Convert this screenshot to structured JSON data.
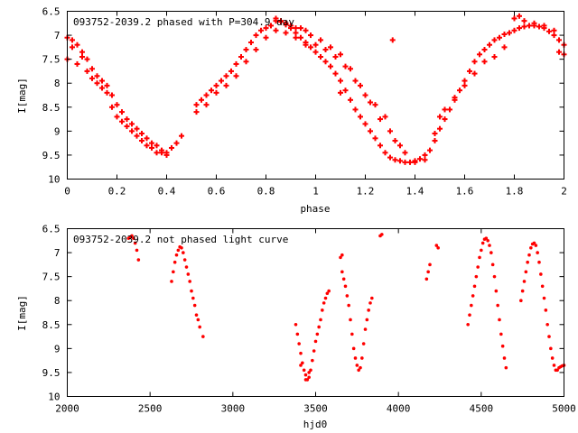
{
  "chart_data": [
    {
      "type": "scatter",
      "title": "093752-2039.2 phased with P=304.9 day",
      "xlabel": "phase",
      "ylabel": "I[mag]",
      "xlim": [
        0,
        2
      ],
      "ylim": [
        10,
        6.5
      ],
      "y_inverted": true,
      "xticks": [
        0,
        0.2,
        0.4,
        0.6,
        0.8,
        1,
        1.2,
        1.4,
        1.6,
        1.8,
        2
      ],
      "xtick_labels": [
        "0",
        "0.2",
        "0.4",
        "0.6",
        "0.8",
        "1",
        "1.2",
        "1.4",
        "1.6",
        "1.8",
        "2"
      ],
      "yticks": [
        6.5,
        7,
        7.5,
        8,
        8.5,
        9,
        9.5,
        10
      ],
      "ytick_labels": [
        "6.5",
        "7",
        "7.5",
        "8",
        "8.5",
        "9",
        "9.5",
        "10"
      ],
      "marker": "cross",
      "color": "#ff0000",
      "series": [
        {
          "x": [
            0.0,
            0.02,
            0.04,
            0.06,
            0.08,
            0.1,
            0.12,
            0.14,
            0.16,
            0.18,
            0.2,
            0.22,
            0.24,
            0.26,
            0.28,
            0.3,
            0.32,
            0.34,
            0.36,
            0.38,
            0.4,
            0.42,
            0.44,
            0.46,
            0.52,
            0.54,
            0.56,
            0.58,
            0.6,
            0.62,
            0.64,
            0.66,
            0.68,
            0.7,
            0.72,
            0.74,
            0.76,
            0.78,
            0.8,
            0.82,
            0.84,
            0.86,
            0.88,
            0.9,
            0.92,
            0.94,
            0.96,
            0.98,
            1.0,
            1.02,
            1.04,
            1.06,
            1.08,
            1.1,
            1.12,
            1.14,
            1.16,
            1.18,
            1.2,
            1.22,
            1.24,
            1.26,
            1.28,
            1.3,
            1.32,
            1.34,
            1.36,
            1.38,
            1.4,
            1.42,
            1.44,
            1.46,
            1.48,
            1.5,
            1.52,
            1.54,
            1.56,
            1.58,
            1.6,
            1.62,
            1.64,
            1.66,
            1.68,
            1.7,
            1.72,
            1.74,
            1.76,
            1.78,
            1.8,
            1.82,
            1.84,
            1.86,
            1.88,
            1.9,
            1.92,
            1.94,
            1.96,
            1.98,
            2.0
          ],
          "y": [
            7.05,
            7.1,
            7.2,
            7.35,
            7.5,
            7.7,
            7.85,
            7.95,
            8.05,
            8.25,
            8.45,
            8.6,
            8.75,
            8.85,
            8.95,
            9.05,
            9.15,
            9.25,
            9.3,
            9.4,
            9.45,
            9.35,
            9.25,
            9.1,
            8.45,
            8.35,
            8.25,
            8.15,
            8.05,
            7.95,
            7.85,
            7.75,
            7.6,
            7.45,
            7.3,
            7.15,
            7.0,
            6.9,
            6.85,
            6.8,
            6.7,
            6.72,
            6.78,
            6.85,
            6.95,
            7.05,
            7.15,
            7.25,
            7.35,
            7.45,
            7.55,
            7.65,
            7.8,
            7.95,
            8.15,
            8.35,
            8.55,
            8.7,
            8.85,
            9.0,
            9.15,
            9.3,
            9.45,
            9.55,
            9.6,
            9.62,
            9.65,
            9.65,
            9.62,
            9.58,
            9.5,
            9.4,
            9.2,
            8.95,
            8.75,
            8.55,
            8.35,
            8.15,
            7.95,
            7.75,
            7.55,
            7.4,
            7.3,
            7.2,
            7.1,
            7.05,
            6.98,
            6.95,
            6.9,
            6.85,
            6.82,
            6.8,
            6.8,
            6.82,
            6.85,
            6.92,
            7.0,
            7.1,
            7.2
          ]
        },
        {
          "x": [
            0.0,
            0.04,
            0.08,
            0.12,
            0.16,
            0.2,
            0.24,
            0.28,
            0.32,
            0.36,
            0.4,
            0.52,
            0.56,
            0.6,
            0.64,
            0.68,
            0.72,
            0.76,
            0.8,
            0.84,
            0.88,
            0.92,
            0.96,
            1.0,
            1.04,
            1.08,
            1.12,
            1.16,
            1.2,
            1.24,
            1.28,
            1.32,
            1.36,
            1.4,
            1.44,
            1.48,
            1.52,
            1.56,
            1.6,
            1.64,
            1.68,
            1.72,
            1.76,
            1.8,
            1.84,
            1.88,
            1.92,
            1.96,
            2.0,
            0.02,
            0.06,
            0.1,
            0.14,
            0.18,
            0.22,
            0.26,
            0.3,
            0.34,
            0.38,
            0.84,
            0.86,
            0.88,
            0.9,
            0.92,
            0.94,
            0.96,
            0.98,
            1.02,
            1.06,
            1.1,
            1.14,
            1.18,
            1.22,
            1.26,
            1.3,
            1.34,
            1.31,
            1.1,
            1.5,
            1.82,
            1.98
          ],
          "y": [
            7.5,
            7.6,
            7.75,
            8.0,
            8.2,
            8.7,
            8.9,
            9.1,
            9.3,
            9.45,
            9.5,
            8.6,
            8.45,
            8.2,
            8.05,
            7.85,
            7.55,
            7.3,
            7.05,
            6.9,
            6.95,
            7.05,
            7.2,
            7.2,
            7.3,
            7.45,
            7.65,
            7.95,
            8.25,
            8.45,
            8.7,
            9.2,
            9.45,
            9.65,
            9.6,
            9.05,
            8.55,
            8.3,
            8.05,
            7.8,
            7.55,
            7.45,
            7.25,
            6.65,
            6.7,
            6.75,
            6.8,
            6.9,
            7.4,
            7.25,
            7.45,
            7.9,
            8.1,
            8.5,
            8.8,
            9.0,
            9.2,
            9.35,
            9.45,
            6.65,
            6.7,
            6.75,
            6.8,
            6.85,
            6.85,
            6.9,
            7.0,
            7.1,
            7.25,
            7.4,
            7.7,
            8.05,
            8.4,
            8.75,
            9.0,
            9.3,
            7.1,
            8.2,
            8.7,
            6.6,
            7.35
          ]
        }
      ]
    },
    {
      "type": "scatter",
      "title": "093752-2039.2 not phased light curve",
      "xlabel": "hjd0",
      "ylabel": "I[mag]",
      "xlim": [
        2000,
        5000
      ],
      "ylim": [
        10,
        6.5
      ],
      "y_inverted": true,
      "xticks": [
        2000,
        2500,
        3000,
        3500,
        4000,
        4500,
        5000
      ],
      "xtick_labels": [
        "2000",
        "2500",
        "3000",
        "3500",
        "4000",
        "4500",
        "5000"
      ],
      "yticks": [
        6.5,
        7,
        7.5,
        8,
        8.5,
        9,
        9.5,
        10
      ],
      "ytick_labels": [
        "6.5",
        "7",
        "7.5",
        "8",
        "8.5",
        "9",
        "9.5",
        "10"
      ],
      "marker": "dot",
      "color": "#ff0000",
      "series": [
        {
          "x": [
            2370,
            2380,
            2390,
            2400,
            2410,
            2420,
            2430,
            2630,
            2640,
            2650,
            2660,
            2670,
            2680,
            2690,
            2700,
            2710,
            2720,
            2730,
            2740,
            2750,
            2760,
            2770,
            2780,
            2790,
            2800,
            2820,
            3380,
            3390,
            3400,
            3410,
            3420,
            3430,
            3440,
            3450,
            3460,
            3470,
            3480,
            3490,
            3500,
            3510,
            3520,
            3530,
            3540,
            3550,
            3560,
            3570,
            3580,
            3660,
            3670,
            3680,
            3690,
            3700,
            3710,
            3720,
            3730,
            3740,
            3750,
            3760,
            3770,
            3780,
            3790,
            3800,
            3810,
            3820,
            3830,
            3840,
            3890,
            3900,
            4170,
            4180,
            4190,
            4230,
            4240,
            4420,
            4430,
            4440,
            4450,
            4460,
            4470,
            4480,
            4490,
            4500,
            4510,
            4520,
            4530,
            4540,
            4550,
            4560,
            4570,
            4580,
            4590,
            4600,
            4610,
            4620,
            4630,
            4640,
            4650,
            4740,
            4750,
            4760,
            4770,
            4780,
            4790,
            4800,
            4810,
            4820,
            4830,
            4840,
            4850,
            4860,
            4870,
            4880,
            4890,
            4900,
            4910,
            4920,
            4930,
            4940,
            4950,
            4960,
            4970,
            4980,
            4990,
            5000,
            3650,
            3660,
            3440,
            3460,
            3410
          ],
          "y": [
            6.7,
            6.68,
            6.65,
            6.7,
            6.8,
            6.95,
            7.15,
            7.6,
            7.4,
            7.2,
            7.05,
            6.95,
            6.88,
            6.9,
            7.0,
            7.15,
            7.3,
            7.45,
            7.6,
            7.8,
            7.95,
            8.1,
            8.3,
            8.4,
            8.55,
            8.75,
            8.5,
            8.7,
            8.9,
            9.1,
            9.3,
            9.45,
            9.55,
            9.65,
            9.6,
            9.45,
            9.25,
            9.05,
            8.85,
            8.7,
            8.55,
            8.4,
            8.2,
            8.05,
            7.95,
            7.85,
            7.8,
            7.4,
            7.55,
            7.7,
            7.9,
            8.1,
            8.4,
            8.7,
            9.0,
            9.2,
            9.35,
            9.45,
            9.4,
            9.2,
            8.9,
            8.6,
            8.4,
            8.2,
            8.05,
            7.95,
            6.65,
            6.62,
            7.55,
            7.4,
            7.25,
            6.85,
            6.9,
            8.5,
            8.3,
            8.1,
            7.9,
            7.7,
            7.5,
            7.3,
            7.1,
            6.95,
            6.8,
            6.72,
            6.7,
            6.75,
            6.85,
            7.0,
            7.25,
            7.5,
            7.8,
            8.1,
            8.4,
            8.7,
            8.95,
            9.2,
            9.4,
            8.0,
            7.8,
            7.6,
            7.4,
            7.2,
            7.05,
            6.9,
            6.82,
            6.8,
            6.85,
            7.0,
            7.2,
            7.45,
            7.7,
            7.95,
            8.2,
            8.5,
            8.75,
            9.0,
            9.2,
            9.35,
            9.45,
            9.45,
            9.4,
            9.38,
            9.36,
            9.35,
            7.1,
            7.05,
            9.65,
            9.5,
            9.35
          ]
        }
      ]
    }
  ]
}
